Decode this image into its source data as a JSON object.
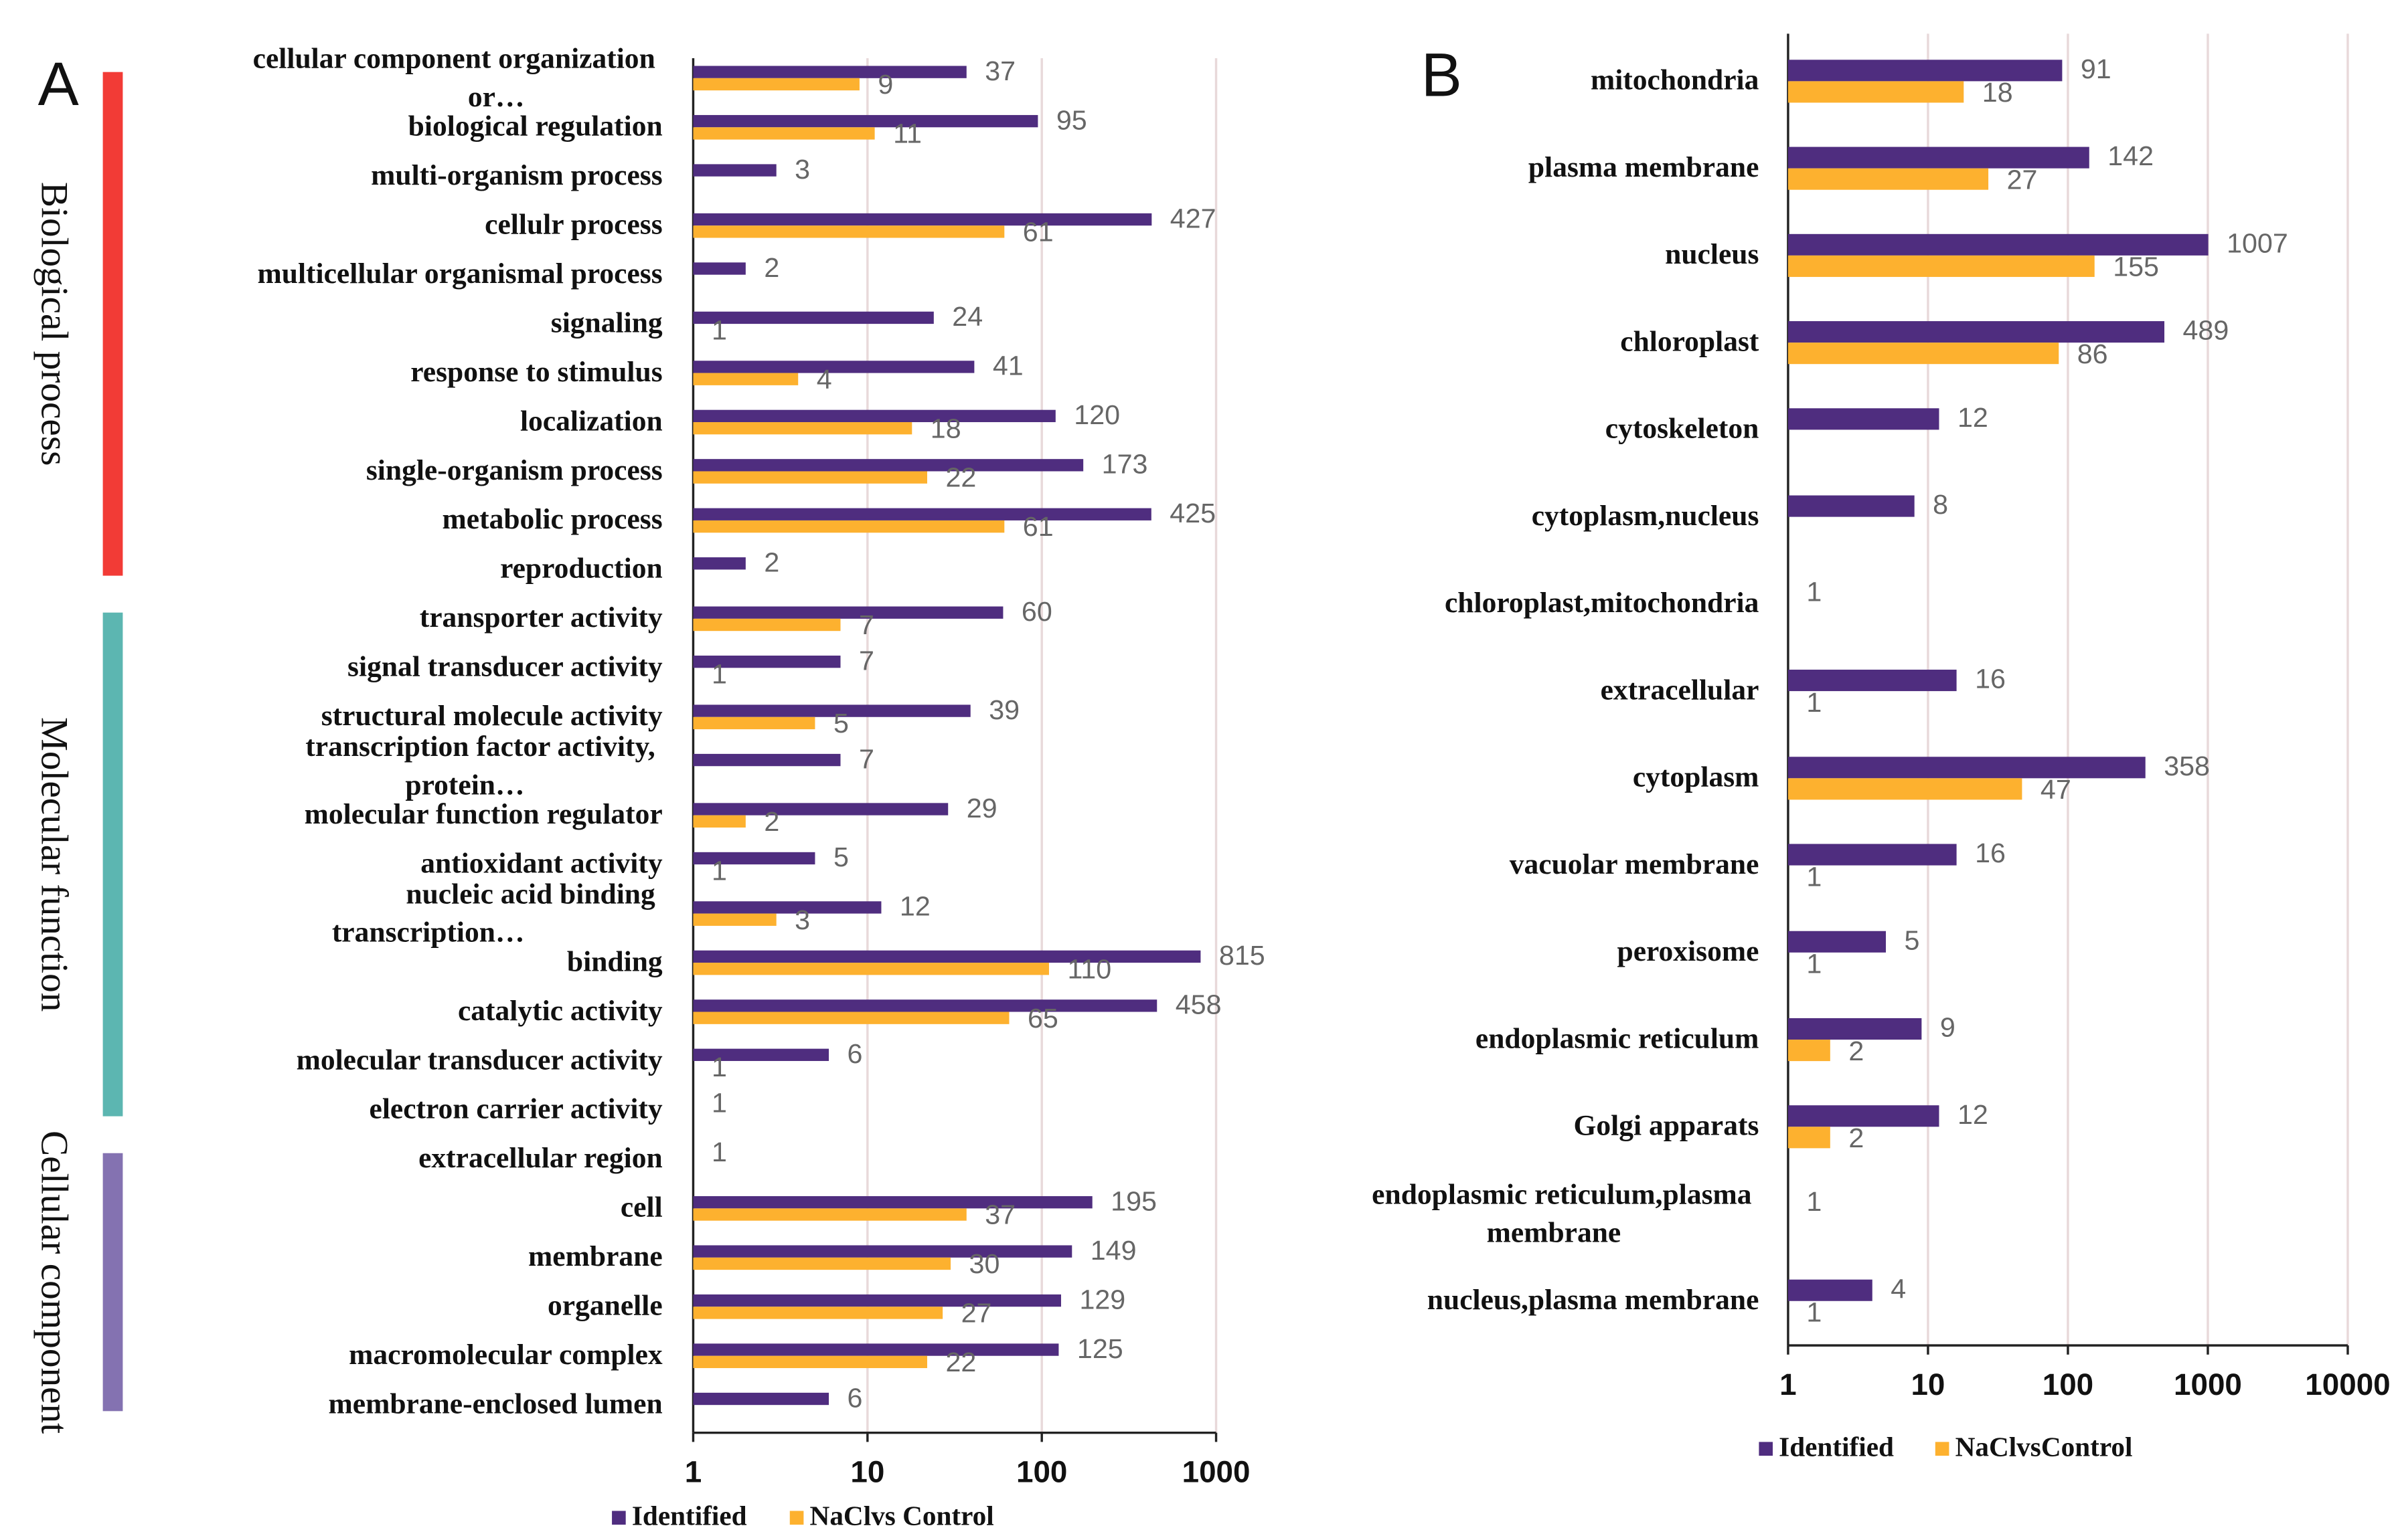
{
  "chart_data": [
    {
      "type": "bar",
      "orientation": "horizontal",
      "panel": "A",
      "categories": [
        "cellular component organization or…",
        "biological regulation",
        "multi-organism process",
        "cellulr process",
        "multicellular organismal process",
        "signaling",
        "response to stimulus",
        "localization",
        "single-organism process",
        "metabolic process",
        "reproduction",
        "transporter activity",
        "signal transducer activity",
        "structural molecule activity",
        "transcription factor activity, protein…",
        "molecular function regulator",
        "antioxidant activity",
        "nucleic acid binding transcription…",
        "binding",
        "catalytic activity",
        "molecular transducer activity",
        "electron carrier activity",
        "extracellular region",
        "cell",
        "membrane",
        "organelle",
        "macromolecular complex",
        "membrane-enclosed lumen"
      ],
      "groups": [
        {
          "name": "Biological process",
          "color": "#f23b36",
          "size": 11
        },
        {
          "name": "Molecular function",
          "color": "#5cb6b1",
          "size": 11
        },
        {
          "name": "Cellular component",
          "color": "#8472b1",
          "size": 6
        }
      ],
      "series": [
        {
          "name": "Identified",
          "color": "#4f2d7f",
          "values": [
            37,
            95,
            3,
            427,
            2,
            24,
            41,
            120,
            173,
            425,
            2,
            60,
            7,
            39,
            7,
            29,
            5,
            12,
            815,
            458,
            6,
            1,
            1,
            195,
            149,
            129,
            125,
            6
          ]
        },
        {
          "name": "NaClvs Control",
          "color": "#fdb12f",
          "values": [
            9,
            11,
            null,
            61,
            null,
            1,
            4,
            18,
            22,
            61,
            null,
            7,
            1,
            5,
            null,
            2,
            1,
            3,
            110,
            65,
            1,
            null,
            null,
            37,
            30,
            27,
            22,
            null
          ]
        }
      ],
      "xscale": "log",
      "xlim": [
        1,
        1000
      ],
      "xticks": [
        1,
        10,
        100,
        1000
      ],
      "grid": true,
      "legend": "bottom"
    },
    {
      "type": "bar",
      "orientation": "horizontal",
      "panel": "B",
      "categories": [
        "mitochondria",
        "plasma membrane",
        "nucleus",
        "chloroplast",
        "cytoskeleton",
        "cytoplasm,nucleus",
        "chloroplast,mitochondria",
        "extracellular",
        "cytoplasm",
        "vacuolar membrane",
        "peroxisome",
        "endoplasmic reticulum",
        "Golgi apparats",
        "endoplasmic reticulum,plasma membrane",
        "nucleus,plasma membrane"
      ],
      "series": [
        {
          "name": "Identified",
          "color": "#4f2d7f",
          "values": [
            91,
            142,
            1007,
            489,
            12,
            8,
            1,
            16,
            358,
            16,
            5,
            9,
            12,
            1,
            4
          ]
        },
        {
          "name": "NaClvsControl",
          "color": "#fdb12f",
          "values": [
            18,
            27,
            155,
            86,
            null,
            null,
            null,
            1,
            47,
            1,
            1,
            2,
            2,
            null,
            1
          ]
        }
      ],
      "xscale": "log",
      "xlim": [
        1,
        10000
      ],
      "xticks": [
        1,
        10,
        100,
        1000,
        10000
      ],
      "grid": true,
      "legend": "bottom"
    }
  ]
}
